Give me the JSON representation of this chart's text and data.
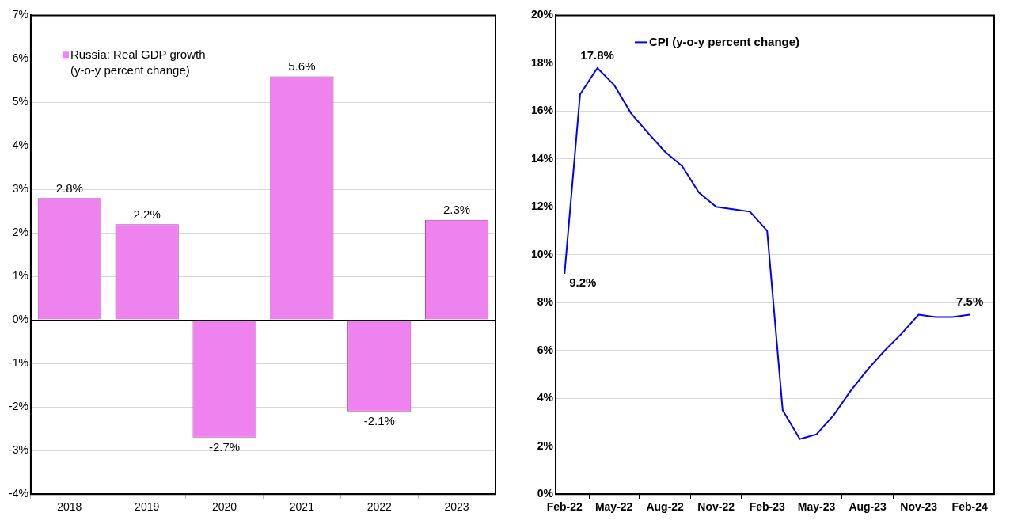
{
  "chart_data": [
    {
      "type": "bar",
      "categories": [
        "2018",
        "2019",
        "2020",
        "2021",
        "2022",
        "2023"
      ],
      "series": [
        {
          "name": "Russia: Real GDP growth (y-o-y percent change)",
          "color": "#ee82ee",
          "values": [
            2.8,
            2.2,
            -2.7,
            5.6,
            -2.1,
            2.3
          ],
          "value_labels": [
            "2.8%",
            "2.2%",
            "-2.7%",
            "5.6%",
            "-2.1%",
            "2.3%"
          ]
        }
      ],
      "ylim": [
        -4,
        7
      ],
      "yticks": [
        {
          "value": -4,
          "label": "-4%"
        },
        {
          "value": -3,
          "label": "-3%"
        },
        {
          "value": -2,
          "label": "-2%"
        },
        {
          "value": -1,
          "label": "-1%"
        },
        {
          "value": 0,
          "label": "0%"
        },
        {
          "value": 1,
          "label": "1%"
        },
        {
          "value": 2,
          "label": "2%"
        },
        {
          "value": 3,
          "label": "3%"
        },
        {
          "value": 4,
          "label": "4%"
        },
        {
          "value": 5,
          "label": "5%"
        },
        {
          "value": 6,
          "label": "6%"
        },
        {
          "value": 7,
          "label": "7%"
        }
      ],
      "grid": "y",
      "legend": "top left"
    },
    {
      "type": "line",
      "x": [
        "2022-02",
        "2022-03",
        "2022-04",
        "2022-05",
        "2022-06",
        "2022-07",
        "2022-08",
        "2022-09",
        "2022-10",
        "2022-11",
        "2022-12",
        "2023-01",
        "2023-02",
        "2023-03",
        "2023-04",
        "2023-05",
        "2023-06",
        "2023-07",
        "2023-08",
        "2023-09",
        "2023-10",
        "2023-11",
        "2023-12",
        "2024-01",
        "2024-02"
      ],
      "series": [
        {
          "name": "CPI (y-o-y percent change)",
          "color": "#0000ff",
          "values": [
            9.2,
            16.7,
            17.8,
            17.1,
            15.9,
            15.1,
            14.3,
            13.7,
            12.6,
            12.0,
            11.9,
            11.8,
            11.0,
            3.5,
            2.3,
            2.5,
            3.3,
            4.3,
            5.2,
            6.0,
            6.7,
            7.5,
            7.4,
            7.4,
            7.5
          ]
        }
      ],
      "xlim": [
        "2022-01-16",
        "2024-03-16"
      ],
      "xticks": [
        {
          "value": "2022-02",
          "label": "Feb-22"
        },
        {
          "value": "2022-05",
          "label": "May-22"
        },
        {
          "value": "2022-08",
          "label": "Aug-22"
        },
        {
          "value": "2022-11",
          "label": "Nov-22"
        },
        {
          "value": "2023-02",
          "label": "Feb-23"
        },
        {
          "value": "2023-05",
          "label": "May-23"
        },
        {
          "value": "2023-08",
          "label": "Aug-23"
        },
        {
          "value": "2023-11",
          "label": "Nov-23"
        },
        {
          "value": "2024-02",
          "label": "Feb-24"
        }
      ],
      "ylim": [
        0,
        20
      ],
      "yticks": [
        {
          "value": 0,
          "label": "0%"
        },
        {
          "value": 2,
          "label": "2%"
        },
        {
          "value": 4,
          "label": "4%"
        },
        {
          "value": 6,
          "label": "6%"
        },
        {
          "value": 8,
          "label": "8%"
        },
        {
          "value": 10,
          "label": "10%"
        },
        {
          "value": 12,
          "label": "12%"
        },
        {
          "value": 14,
          "label": "14%"
        },
        {
          "value": 16,
          "label": "16%"
        },
        {
          "value": 18,
          "label": "18%"
        },
        {
          "value": 20,
          "label": "20%"
        }
      ],
      "annotations": [
        {
          "text": "9.2%",
          "x": "2022-02",
          "y": 9.2
        },
        {
          "text": "17.8%",
          "x": "2022-04",
          "y": 17.8
        },
        {
          "text": "7.5%",
          "x": "2024-02",
          "y": 7.5
        }
      ],
      "grid": "y",
      "legend": "top left"
    }
  ]
}
